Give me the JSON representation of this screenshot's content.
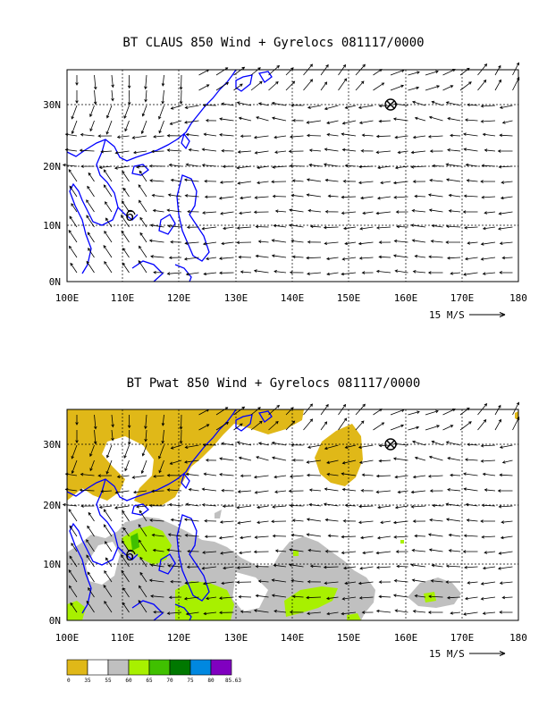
{
  "panels": [
    {
      "title": "BT CLAUS 850 Wind + Gyrelocs 081117/0000",
      "x_ticks": [
        "100E",
        "110E",
        "120E",
        "130E",
        "140E",
        "150E",
        "160E",
        "170E",
        "180"
      ],
      "y_ticks": [
        "0N",
        "10N",
        "20N",
        "30N"
      ],
      "scale_label": "15 M/S"
    },
    {
      "title": "BT Pwat 850 Wind + Gyrelocs 081117/0000",
      "x_ticks": [
        "100E",
        "110E",
        "120E",
        "130E",
        "140E",
        "150E",
        "160E",
        "170E",
        "180"
      ],
      "y_ticks": [
        "0N",
        "10N",
        "20N",
        "30N"
      ],
      "scale_label": "15 M/S"
    }
  ],
  "legend": {
    "labels": [
      "0",
      "35",
      "55",
      "60",
      "65",
      "70",
      "75",
      "80",
      "85.63"
    ],
    "colors": [
      "#e0b818",
      "#ffffff",
      "#c0c0c0",
      "#a8f000",
      "#40c000",
      "#007800",
      "#0088e0",
      "#8000c0"
    ]
  },
  "colors": {
    "coast": "#0000ff",
    "grid": "#000000",
    "arrow": "#000000",
    "pwat_high": "#e0b818",
    "pwat_mid": "#c0c0c0",
    "pwat_green": "#a8f000"
  },
  "markers": [
    "tropical-cyclone-symbol",
    "gyre-center-symbol"
  ]
}
